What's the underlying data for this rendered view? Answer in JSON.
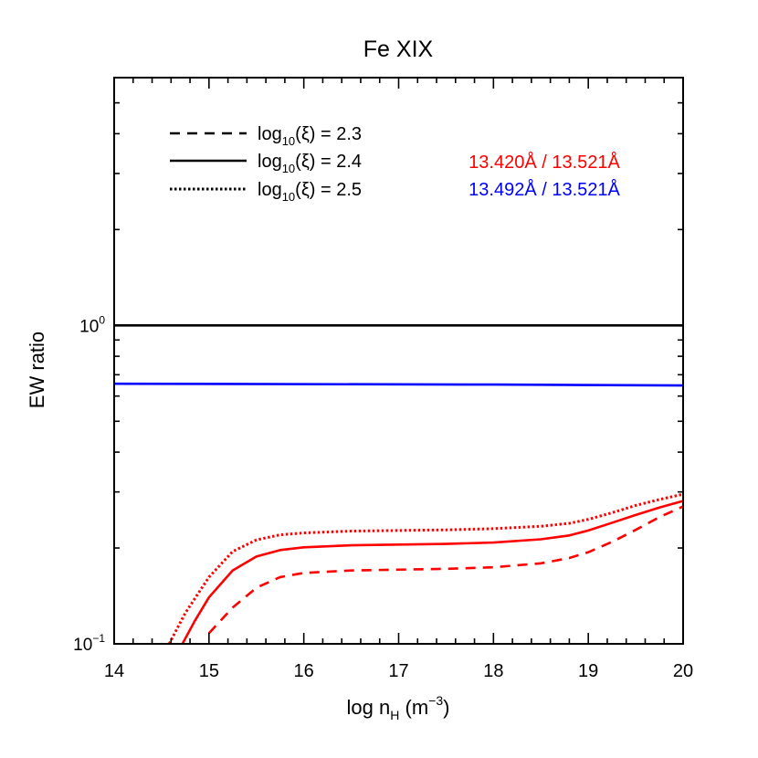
{
  "chart_data": {
    "type": "line",
    "title": "Fe XIX",
    "xlabel": {
      "base": "log n",
      "sub": "H",
      "mid": " (m",
      "sup": "−3",
      "end": ")"
    },
    "ylabel": "EW ratio",
    "xlim": [
      14,
      20
    ],
    "ylim": [
      0.1,
      6.0
    ],
    "yscale": "log",
    "x_ticks": [
      "14",
      "15",
      "16",
      "17",
      "18",
      "19",
      "20"
    ],
    "y_ticks": [
      {
        "value": 1.0,
        "base": "10",
        "exp": "0"
      },
      {
        "value": 0.1,
        "base": "10",
        "exp": "−1"
      }
    ],
    "legend_styles": [
      {
        "prefix": "log",
        "sub": "10",
        "expr": "(ξ) = 2.3",
        "linestyle": "dashed"
      },
      {
        "prefix": "log",
        "sub": "10",
        "expr": "(ξ) = 2.4",
        "linestyle": "solid"
      },
      {
        "prefix": "log",
        "sub": "10",
        "expr": "(ξ) = 2.5",
        "linestyle": "dotted"
      }
    ],
    "legend_ratios": [
      {
        "label": "13.420Å / 13.521Å",
        "color": "#ff0000"
      },
      {
        "label": "13.492Å / 13.521Å",
        "color": "#0000ff"
      }
    ],
    "series": [
      {
        "name": "reference 1.0",
        "color": "#000000",
        "linestyle": "solid",
        "x": [
          14,
          20
        ],
        "y": [
          1.0,
          1.0
        ]
      },
      {
        "name": "13.492Å / 13.521Å",
        "color": "#0000ff",
        "linestyle": "solid",
        "x": [
          14,
          16,
          18,
          20
        ],
        "y": [
          0.656,
          0.654,
          0.652,
          0.648
        ]
      },
      {
        "name": "13.420Å / 13.521Å, log10(ξ) = 2.3",
        "color": "#ff0000",
        "linestyle": "dashed",
        "x": [
          15.0,
          15.25,
          15.5,
          15.75,
          16.0,
          16.5,
          17.0,
          17.5,
          18.0,
          18.5,
          18.8,
          19.0,
          19.25,
          19.5,
          19.75,
          20.0
        ],
        "y": [
          0.108,
          0.13,
          0.15,
          0.162,
          0.167,
          0.17,
          0.171,
          0.172,
          0.174,
          0.179,
          0.186,
          0.194,
          0.209,
          0.228,
          0.25,
          0.27
        ]
      },
      {
        "name": "13.420Å / 13.521Å, log10(ξ) = 2.4",
        "color": "#ff0000",
        "linestyle": "solid",
        "x": [
          14.72,
          14.85,
          15.0,
          15.25,
          15.5,
          15.75,
          16.0,
          16.5,
          17.0,
          17.5,
          18.0,
          18.5,
          18.8,
          19.0,
          19.25,
          19.5,
          19.75,
          20.0
        ],
        "y": [
          0.1,
          0.118,
          0.14,
          0.17,
          0.188,
          0.197,
          0.201,
          0.204,
          0.205,
          0.206,
          0.208,
          0.213,
          0.219,
          0.227,
          0.24,
          0.254,
          0.268,
          0.281
        ]
      },
      {
        "name": "13.420Å / 13.521Å, log10(ξ) = 2.5",
        "color": "#ff0000",
        "linestyle": "dotted",
        "x": [
          14.58,
          14.75,
          15.0,
          15.25,
          15.5,
          15.75,
          16.0,
          16.5,
          17.0,
          17.5,
          18.0,
          18.5,
          18.8,
          19.0,
          19.25,
          19.5,
          19.75,
          20.0
        ],
        "y": [
          0.1,
          0.125,
          0.162,
          0.195,
          0.212,
          0.22,
          0.223,
          0.226,
          0.227,
          0.228,
          0.23,
          0.234,
          0.239,
          0.246,
          0.258,
          0.272,
          0.284,
          0.295
        ]
      }
    ]
  }
}
